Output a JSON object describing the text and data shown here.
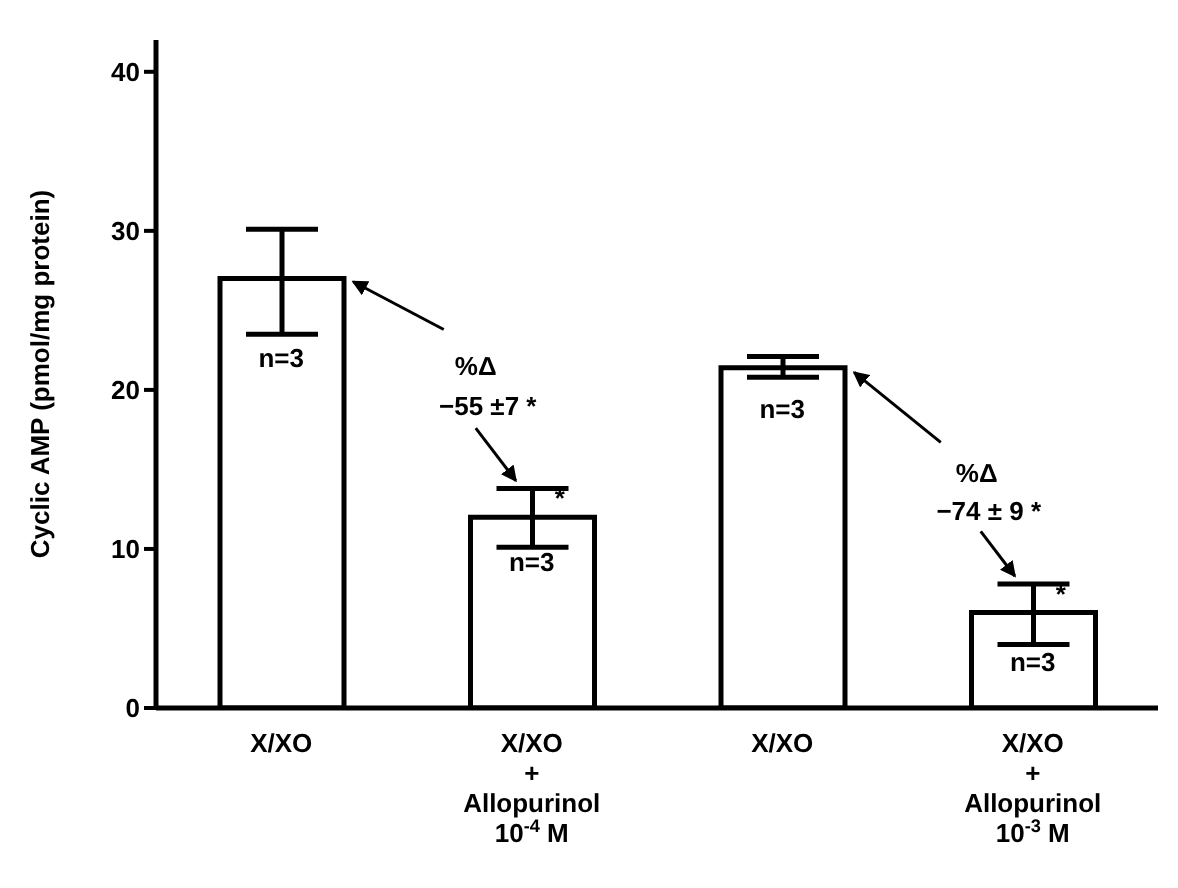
{
  "chart_data": {
    "type": "bar",
    "ylabel": "Cyclic AMP (pmol/mg protein)",
    "categories": [
      "X/XO",
      "X/XO\n+\nAllopurinol\n10$^{-4}$ M",
      "X/XO",
      "X/XO\n+\nAllopurinol\n10$^{-3}$ M"
    ],
    "values": [
      27,
      12,
      21.4,
      6
    ],
    "errors": [
      [
        23.5,
        30.1
      ],
      [
        10.1,
        13.8
      ],
      [
        20.8,
        22.1
      ],
      [
        4,
        7.8
      ]
    ],
    "color": "#ffffff",
    "ylim": [
      0,
      42
    ],
    "yticks": [
      0,
      10,
      20,
      30,
      40
    ],
    "annotations": [
      "n=3",
      "n=3",
      "n=3",
      "n=3",
      "*",
      "*",
      "%Δ",
      "−55 ±7 *",
      "%Δ",
      "−74 ± 9 *"
    ]
  }
}
